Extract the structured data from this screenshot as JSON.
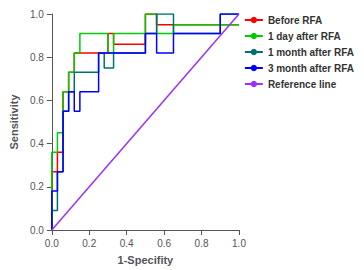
{
  "chart_data": {
    "type": "line",
    "xlabel": "1-Specifity",
    "ylabel": "Sensitivity",
    "xlim": [
      0.0,
      1.0
    ],
    "ylim": [
      0.0,
      1.0
    ],
    "xticks": [
      {
        "value": 0,
        "label": "0.0"
      },
      0.2,
      0.4,
      0.6,
      0.8,
      {
        "value": 1,
        "label": "1.0"
      }
    ],
    "yticks": [
      {
        "value": 0,
        "label": "0.0"
      },
      0.2,
      0.4,
      0.6,
      0.8,
      {
        "value": 1,
        "label": "1.0"
      }
    ],
    "grid": false,
    "legend": "right",
    "series": [
      {
        "name": "Before RFA",
        "color": "#ff0000",
        "x": [
          0.0,
          0.0,
          0.03,
          0.03,
          0.06,
          0.06,
          0.09,
          0.09,
          0.12,
          0.12,
          0.3,
          0.3,
          0.33,
          0.33,
          0.5,
          0.5,
          0.56,
          0.56,
          1.0
        ],
        "values": [
          0.0,
          0.27,
          0.27,
          0.36,
          0.36,
          0.64,
          0.64,
          0.73,
          0.73,
          0.82,
          0.82,
          0.91,
          0.91,
          0.86,
          0.86,
          1.0,
          1.0,
          0.95,
          0.95
        ]
      },
      {
        "name": "1 day after RFA",
        "color": "#00cc00",
        "x": [
          0.0,
          0.0,
          0.03,
          0.03,
          0.06,
          0.06,
          0.09,
          0.09,
          0.12,
          0.12,
          0.15,
          0.15,
          0.3,
          0.3,
          0.33,
          0.33,
          0.5,
          0.5,
          0.56,
          0.56,
          0.65,
          0.65,
          1.0
        ],
        "values": [
          0.0,
          0.36,
          0.36,
          0.45,
          0.45,
          0.64,
          0.64,
          0.73,
          0.73,
          0.82,
          0.82,
          0.91,
          0.91,
          0.82,
          0.82,
          0.91,
          0.91,
          1.0,
          1.0,
          0.91,
          0.91,
          0.95,
          0.95
        ]
      },
      {
        "name": "1 month after RFA",
        "color": "#007070",
        "x": [
          0.0,
          0.0,
          0.03,
          0.03,
          0.06,
          0.06,
          0.09,
          0.09,
          0.12,
          0.12,
          0.25,
          0.25,
          0.28,
          0.28,
          0.33,
          0.33,
          0.5,
          0.5,
          0.56,
          0.56,
          0.65,
          0.65,
          0.9,
          0.9,
          1.0
        ],
        "values": [
          0.0,
          0.09,
          0.09,
          0.27,
          0.27,
          0.55,
          0.55,
          0.64,
          0.64,
          0.73,
          0.73,
          0.82,
          0.82,
          0.75,
          0.75,
          0.82,
          0.82,
          0.91,
          0.91,
          1.0,
          1.0,
          0.91,
          0.91,
          1.0,
          1.0
        ]
      },
      {
        "name": "3 month after RFA",
        "color": "#0000ff",
        "x": [
          0.0,
          0.0,
          0.03,
          0.03,
          0.06,
          0.06,
          0.09,
          0.09,
          0.12,
          0.12,
          0.15,
          0.15,
          0.25,
          0.25,
          0.33,
          0.33,
          0.5,
          0.5,
          0.56,
          0.56,
          0.65,
          0.65,
          0.9,
          0.9,
          1.0
        ],
        "values": [
          0.0,
          0.18,
          0.18,
          0.27,
          0.27,
          0.55,
          0.55,
          0.64,
          0.64,
          0.55,
          0.55,
          0.64,
          0.64,
          0.82,
          0.82,
          0.82,
          0.82,
          0.91,
          0.91,
          0.82,
          0.82,
          0.91,
          0.91,
          1.0,
          1.0
        ]
      },
      {
        "name": "Reference line",
        "color": "#9b30ff",
        "x": [
          0,
          1
        ],
        "values": [
          0,
          1
        ]
      }
    ]
  }
}
